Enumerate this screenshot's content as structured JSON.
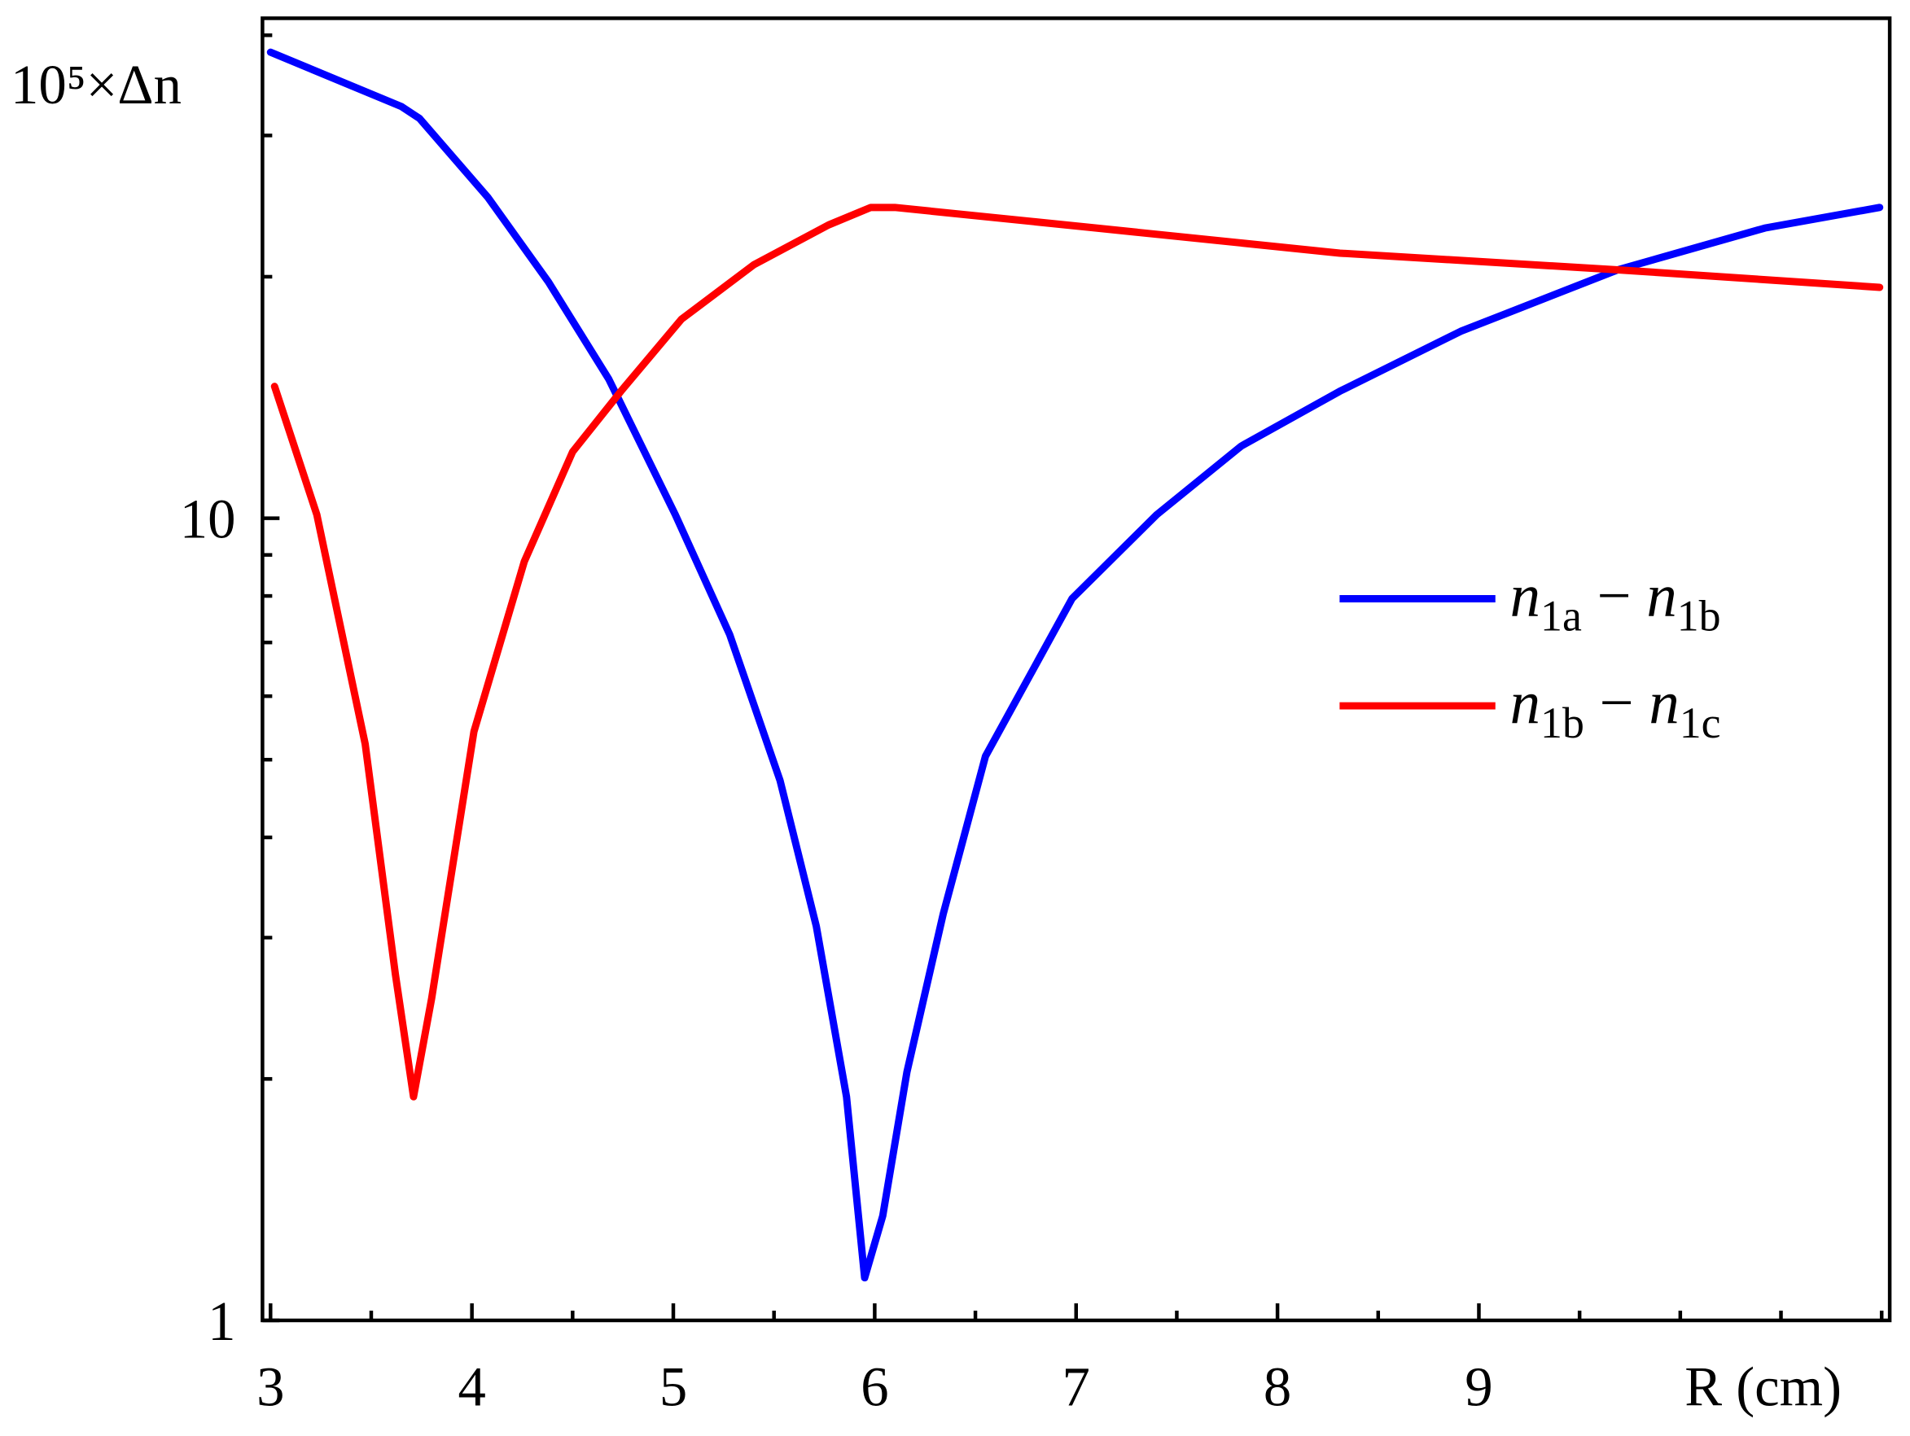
{
  "chart_data": {
    "type": "line",
    "y_label": "10⁵×Δn",
    "x_label": "R (cm)",
    "xlim": [
      2.96,
      11.04
    ],
    "xticks": [
      3,
      4,
      5,
      6,
      7,
      8,
      9
    ],
    "xminorticks": [
      3.5,
      4.5,
      5.5,
      6.5,
      7.5,
      8.5,
      9.5,
      10,
      10.5,
      11
    ],
    "ylim": [
      1,
      42
    ],
    "log_y": true,
    "yticks": [
      1,
      10
    ],
    "yminorticks": [
      2,
      3,
      4,
      5,
      6,
      7,
      8,
      9,
      20,
      30,
      40
    ],
    "legend": "right",
    "series": [
      {
        "name": "n1a − n1b",
        "color": "#0000ff",
        "x": [
          3.0,
          3.65,
          3.74,
          4.08,
          4.38,
          4.68,
          5.01,
          5.28,
          5.53,
          5.71,
          5.86,
          5.95,
          6.04,
          6.16,
          6.34,
          6.55,
          6.98,
          7.4,
          7.82,
          8.31,
          8.91,
          9.69,
          10.42,
          10.99
        ],
        "values": [
          38.1,
          32.6,
          31.5,
          25.1,
          19.7,
          14.9,
          10.1,
          7.16,
          4.71,
          3.1,
          1.9,
          1.13,
          1.35,
          2.04,
          3.21,
          5.05,
          7.94,
          10.1,
          12.3,
          14.4,
          17.1,
          20.4,
          23.0,
          24.4
        ]
      },
      {
        "name": "n1b − n1c",
        "color": "#ff0000",
        "x": [
          3.02,
          3.23,
          3.47,
          3.62,
          3.71,
          3.8,
          4.01,
          4.26,
          4.5,
          4.74,
          5.04,
          5.4,
          5.77,
          5.98,
          6.1,
          7.1,
          8.31,
          9.69,
          10.99
        ],
        "values": [
          14.6,
          10.1,
          5.23,
          2.7,
          1.9,
          2.52,
          5.42,
          8.83,
          12.1,
          14.4,
          17.7,
          20.7,
          23.2,
          24.4,
          24.4,
          23.0,
          21.4,
          20.4,
          19.4
        ]
      }
    ]
  }
}
